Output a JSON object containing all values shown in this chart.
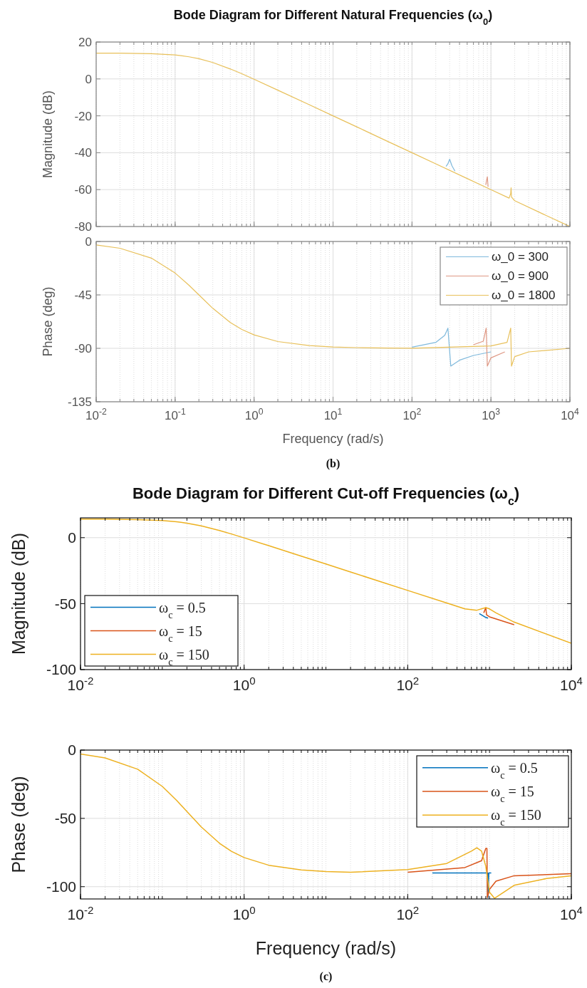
{
  "chart_data": [
    {
      "type": "line",
      "title": "Bode Diagram for Different Natural Frequencies (ω$_{0}$)",
      "ylabel": "Magnitude (dB)",
      "log": "x",
      "grid": true,
      "legend": false,
      "tick_labels": "y",
      "xlim": [
        0.01,
        10000
      ],
      "ylim": [
        -80,
        20
      ],
      "xticks": [
        {
          "value": 0.01,
          "label": null
        },
        {
          "value": 0.1,
          "label": null
        },
        {
          "value": 1,
          "label": null
        },
        {
          "value": 10,
          "label": null
        },
        {
          "value": 100,
          "label": null
        },
        {
          "value": 1000,
          "label": null
        },
        {
          "value": 10000,
          "label": null
        }
      ],
      "yticks": [
        -80,
        -60,
        -40,
        -20,
        0,
        20
      ],
      "series": [
        {
          "color": "#7fb9dc",
          "x": [
            270,
            285,
            300,
            320,
            350
          ],
          "values": [
            -47.4,
            -46,
            -43.5,
            -47,
            -50
          ]
        },
        {
          "color": "#df9884",
          "x": [
            860,
            880,
            900,
            920
          ],
          "values": [
            -57.5,
            -55,
            -53,
            -58.5
          ]
        },
        {
          "color": "#e8c05a",
          "x": [
            0.01,
            0.02,
            0.05,
            0.1,
            0.15,
            0.2,
            0.3,
            0.5,
            0.7,
            1,
            2,
            5,
            10,
            20,
            50,
            100,
            200,
            500,
            1000,
            1700,
            1780,
            1800,
            1820,
            2000,
            5000,
            10000
          ],
          "values": [
            14,
            14,
            13.7,
            13,
            12,
            11,
            8.9,
            5.4,
            2.8,
            -0.2,
            -6.1,
            -14,
            -20,
            -26,
            -34,
            -40,
            -46,
            -54,
            -60,
            -64.6,
            -62,
            -59,
            -64,
            -66,
            -74,
            -80
          ]
        }
      ]
    },
    {
      "type": "line",
      "xlabel": "Frequency (rad/s)",
      "ylabel": "Phase (deg)",
      "log": "x",
      "grid": true,
      "legend": "top right",
      "xlim": [
        0.01,
        10000
      ],
      "ylim": [
        -135,
        0
      ],
      "annotations": [
        "(b)"
      ],
      "xticks": [
        {
          "value": 0.01,
          "label": "10$^{-2}$"
        },
        {
          "value": 0.1,
          "label": "10$^{-1}$"
        },
        {
          "value": 1,
          "label": "10$^{0}$"
        },
        {
          "value": 10,
          "label": "10$^{1}$"
        },
        {
          "value": 100,
          "label": "10$^{2}$"
        },
        {
          "value": 1000,
          "label": "10$^{3}$"
        },
        {
          "value": 10000,
          "label": "10$^{4}$"
        }
      ],
      "yticks": [
        -135,
        -90,
        -45,
        0
      ],
      "series": [
        {
          "name": "ω_0 = 300",
          "color": "#7fb9dc",
          "x": [
            100,
            200,
            260,
            285,
            310,
            400,
            600,
            1000
          ],
          "values": [
            -89,
            -85,
            -79,
            -73,
            -105,
            -100,
            -96,
            -93
          ]
        },
        {
          "name": "ω_0 = 900",
          "color": "#df9884",
          "x": [
            600,
            800,
            870,
            900,
            1000,
            1500
          ],
          "values": [
            -87,
            -84,
            -73,
            -105,
            -98,
            -93
          ]
        },
        {
          "name": "ω_0 = 1800",
          "color": "#e8c05a",
          "x": [
            0.01,
            0.02,
            0.05,
            0.1,
            0.15,
            0.2,
            0.3,
            0.5,
            0.7,
            1,
            2,
            5,
            10,
            20,
            50,
            100,
            1000,
            1600,
            1780,
            1820,
            2000,
            3000,
            10000
          ],
          "values": [
            -2.9,
            -5.7,
            -14,
            -26.6,
            -36.9,
            -45,
            -56.3,
            -68.2,
            -74.1,
            -78.7,
            -84.3,
            -87.7,
            -88.9,
            -89.4,
            -89.8,
            -89.9,
            -88,
            -85,
            -73,
            -105,
            -97,
            -93,
            -90
          ]
        }
      ]
    },
    {
      "type": "line",
      "title": "Bode Diagram for Different Cut-off Frequencies (ω$_{c}$)",
      "ylabel": "Magnitude (dB)",
      "log": "x",
      "grid": true,
      "legend": "bottom left",
      "xlim": [
        0.01,
        10000
      ],
      "ylim": [
        -100,
        15
      ],
      "xticks": [
        {
          "value": 0.01,
          "label": "10$^{-2}$"
        },
        {
          "value": 1,
          "label": "10$^{0}$"
        },
        {
          "value": 100,
          "label": "10$^{2}$"
        },
        {
          "value": 10000,
          "label": "10$^{4}$"
        }
      ],
      "yticks": [
        -100,
        -50,
        0
      ],
      "series": [
        {
          "name": "ω$_{c}$ = 0.5",
          "color": "#0072bd",
          "x": [
            750,
            900,
            960
          ],
          "values": [
            -57.5,
            -60.5,
            -61
          ]
        },
        {
          "name": "ω$_{c}$ = 15",
          "color": "#d95319",
          "x": [
            850,
            900,
            920,
            1000,
            2000
          ],
          "values": [
            -57,
            -53,
            -58.5,
            -60,
            -66
          ]
        },
        {
          "name": "ω$_{c}$ = 150",
          "color": "#edb120",
          "x": [
            0.01,
            0.02,
            0.05,
            0.1,
            0.15,
            0.2,
            0.3,
            0.5,
            0.7,
            1,
            2,
            5,
            10,
            20,
            50,
            100,
            300,
            500,
            700,
            900,
            1000,
            1200,
            2000,
            10000
          ],
          "values": [
            14,
            14,
            13.7,
            13,
            12,
            11,
            8.9,
            5.4,
            2.8,
            -0.2,
            -6.1,
            -14,
            -20,
            -26,
            -34,
            -40,
            -49.5,
            -54,
            -55,
            -53,
            -54,
            -57,
            -64,
            -80
          ]
        }
      ]
    },
    {
      "type": "line",
      "xlabel": "Frequency (rad/s)",
      "ylabel": "Phase (deg)",
      "log": "x",
      "grid": true,
      "legend": "top right",
      "xlim": [
        0.01,
        10000
      ],
      "ylim": [
        -109,
        0
      ],
      "annotations": [
        "(c)"
      ],
      "xticks": [
        {
          "value": 0.01,
          "label": "10$^{-2}$"
        },
        {
          "value": 1,
          "label": "10$^{0}$"
        },
        {
          "value": 100,
          "label": "10$^{2}$"
        },
        {
          "value": 10000,
          "label": "10$^{4}$"
        }
      ],
      "yticks": [
        -100,
        -50,
        0
      ],
      "series": [
        {
          "name": "ω$_{c}$ = 0.5",
          "color": "#0072bd",
          "x": [
            200,
            900,
            950,
            960,
            980,
            1050
          ],
          "values": [
            -90,
            -90,
            -90,
            -108,
            -90,
            -90
          ]
        },
        {
          "name": "ω$_{c}$ = 15",
          "color": "#d95319",
          "x": [
            100,
            500,
            800,
            900,
            930,
            940,
            1000,
            1200,
            2000,
            10000
          ],
          "values": [
            -89.5,
            -86,
            -81,
            -72,
            -72,
            -108,
            -102,
            -96,
            -92,
            -90.5
          ]
        },
        {
          "name": "ω$_{c}$ = 150",
          "color": "#edb120",
          "x": [
            0.01,
            0.02,
            0.05,
            0.1,
            0.15,
            0.2,
            0.3,
            0.5,
            0.7,
            1,
            2,
            5,
            10,
            20,
            100,
            300,
            600,
            700,
            800,
            900,
            950,
            1000,
            1150,
            1500,
            2000,
            5000,
            10000
          ],
          "values": [
            -2.9,
            -5.7,
            -14,
            -26.6,
            -36.9,
            -45,
            -56.3,
            -68.2,
            -74.1,
            -78.7,
            -84.3,
            -87.7,
            -88.9,
            -89.5,
            -87.5,
            -83,
            -74,
            -71.5,
            -74,
            -85,
            -95,
            -104,
            -108.5,
            -104,
            -99,
            -94,
            -92
          ]
        }
      ]
    }
  ]
}
